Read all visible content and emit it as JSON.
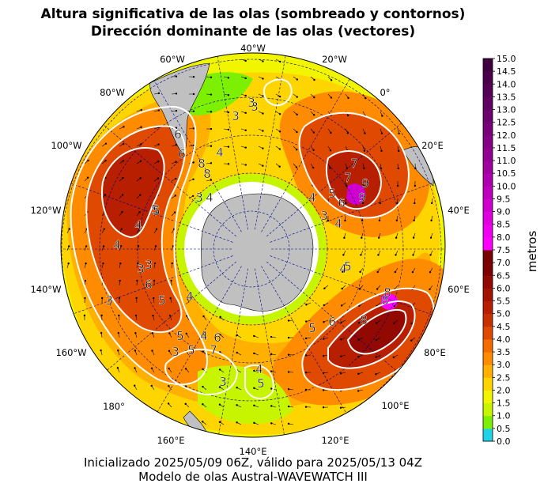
{
  "header": {
    "title_line1": "Altura significativa de las olas (sombreado y contornos)",
    "title_line2": "Dirección dominante de las olas (vectores)"
  },
  "footer": {
    "line1": "Inicializado 2025/05/09 06Z, válido para 2025/05/13 04Z",
    "line2": "Modelo de olas Austral-WAVEWATCH III"
  },
  "map": {
    "projection": "south-polar-stereographic",
    "land_color": "#c0c0c0",
    "grid_color": "#00008b",
    "contour_color": "#ffffff",
    "longitude_labels": [
      "40°W",
      "20°W",
      "0°",
      "20°E",
      "40°E",
      "60°E",
      "80°E",
      "100°E",
      "120°E",
      "140°E",
      "160°E",
      "180°",
      "160°W",
      "140°W",
      "120°W",
      "100°W",
      "80°W",
      "60°W"
    ],
    "contour_labels": [
      "3",
      "3",
      "3",
      "4",
      "8",
      "8",
      "6",
      "4",
      "6",
      "3",
      "5",
      "4",
      "3",
      "3",
      "6",
      "5",
      "4",
      "3",
      "5",
      "5",
      "4",
      "6",
      "7",
      "3",
      "4",
      "5",
      "3",
      "4",
      "5",
      "6",
      "8",
      "7",
      "9",
      "3",
      "4",
      "5",
      "4",
      "5",
      "7",
      "6",
      "8",
      "9",
      "8",
      "4",
      "5"
    ]
  },
  "colorbar": {
    "label": "metros",
    "ticks": [
      "0.0",
      "0.5",
      "1.0",
      "1.5",
      "2.0",
      "2.5",
      "3.0",
      "3.5",
      "4.0",
      "4.5",
      "5.0",
      "5.5",
      "6.0",
      "6.5",
      "7.0",
      "7.5",
      "8.0",
      "8.5",
      "9.0",
      "9.5",
      "10.0",
      "10.5",
      "11.0",
      "11.5",
      "12.0",
      "12.5",
      "13.0",
      "13.5",
      "14.0",
      "14.5",
      "15.0"
    ],
    "colors": [
      "#21d3e6",
      "#7cf000",
      "#c7f500",
      "#f2f500",
      "#ffd500",
      "#ffb000",
      "#ff8c00",
      "#f56b00",
      "#e04a00",
      "#c93000",
      "#b81f00",
      "#a41300",
      "#910900",
      "#7f0000",
      "#780000",
      "#ff00ff",
      "#f000f0",
      "#e000e0",
      "#cf00cf",
      "#be00be",
      "#ae00ae",
      "#a000a0",
      "#920092",
      "#840084",
      "#780078",
      "#6c006c",
      "#600060",
      "#540054",
      "#4a004a",
      "#400040"
    ]
  }
}
